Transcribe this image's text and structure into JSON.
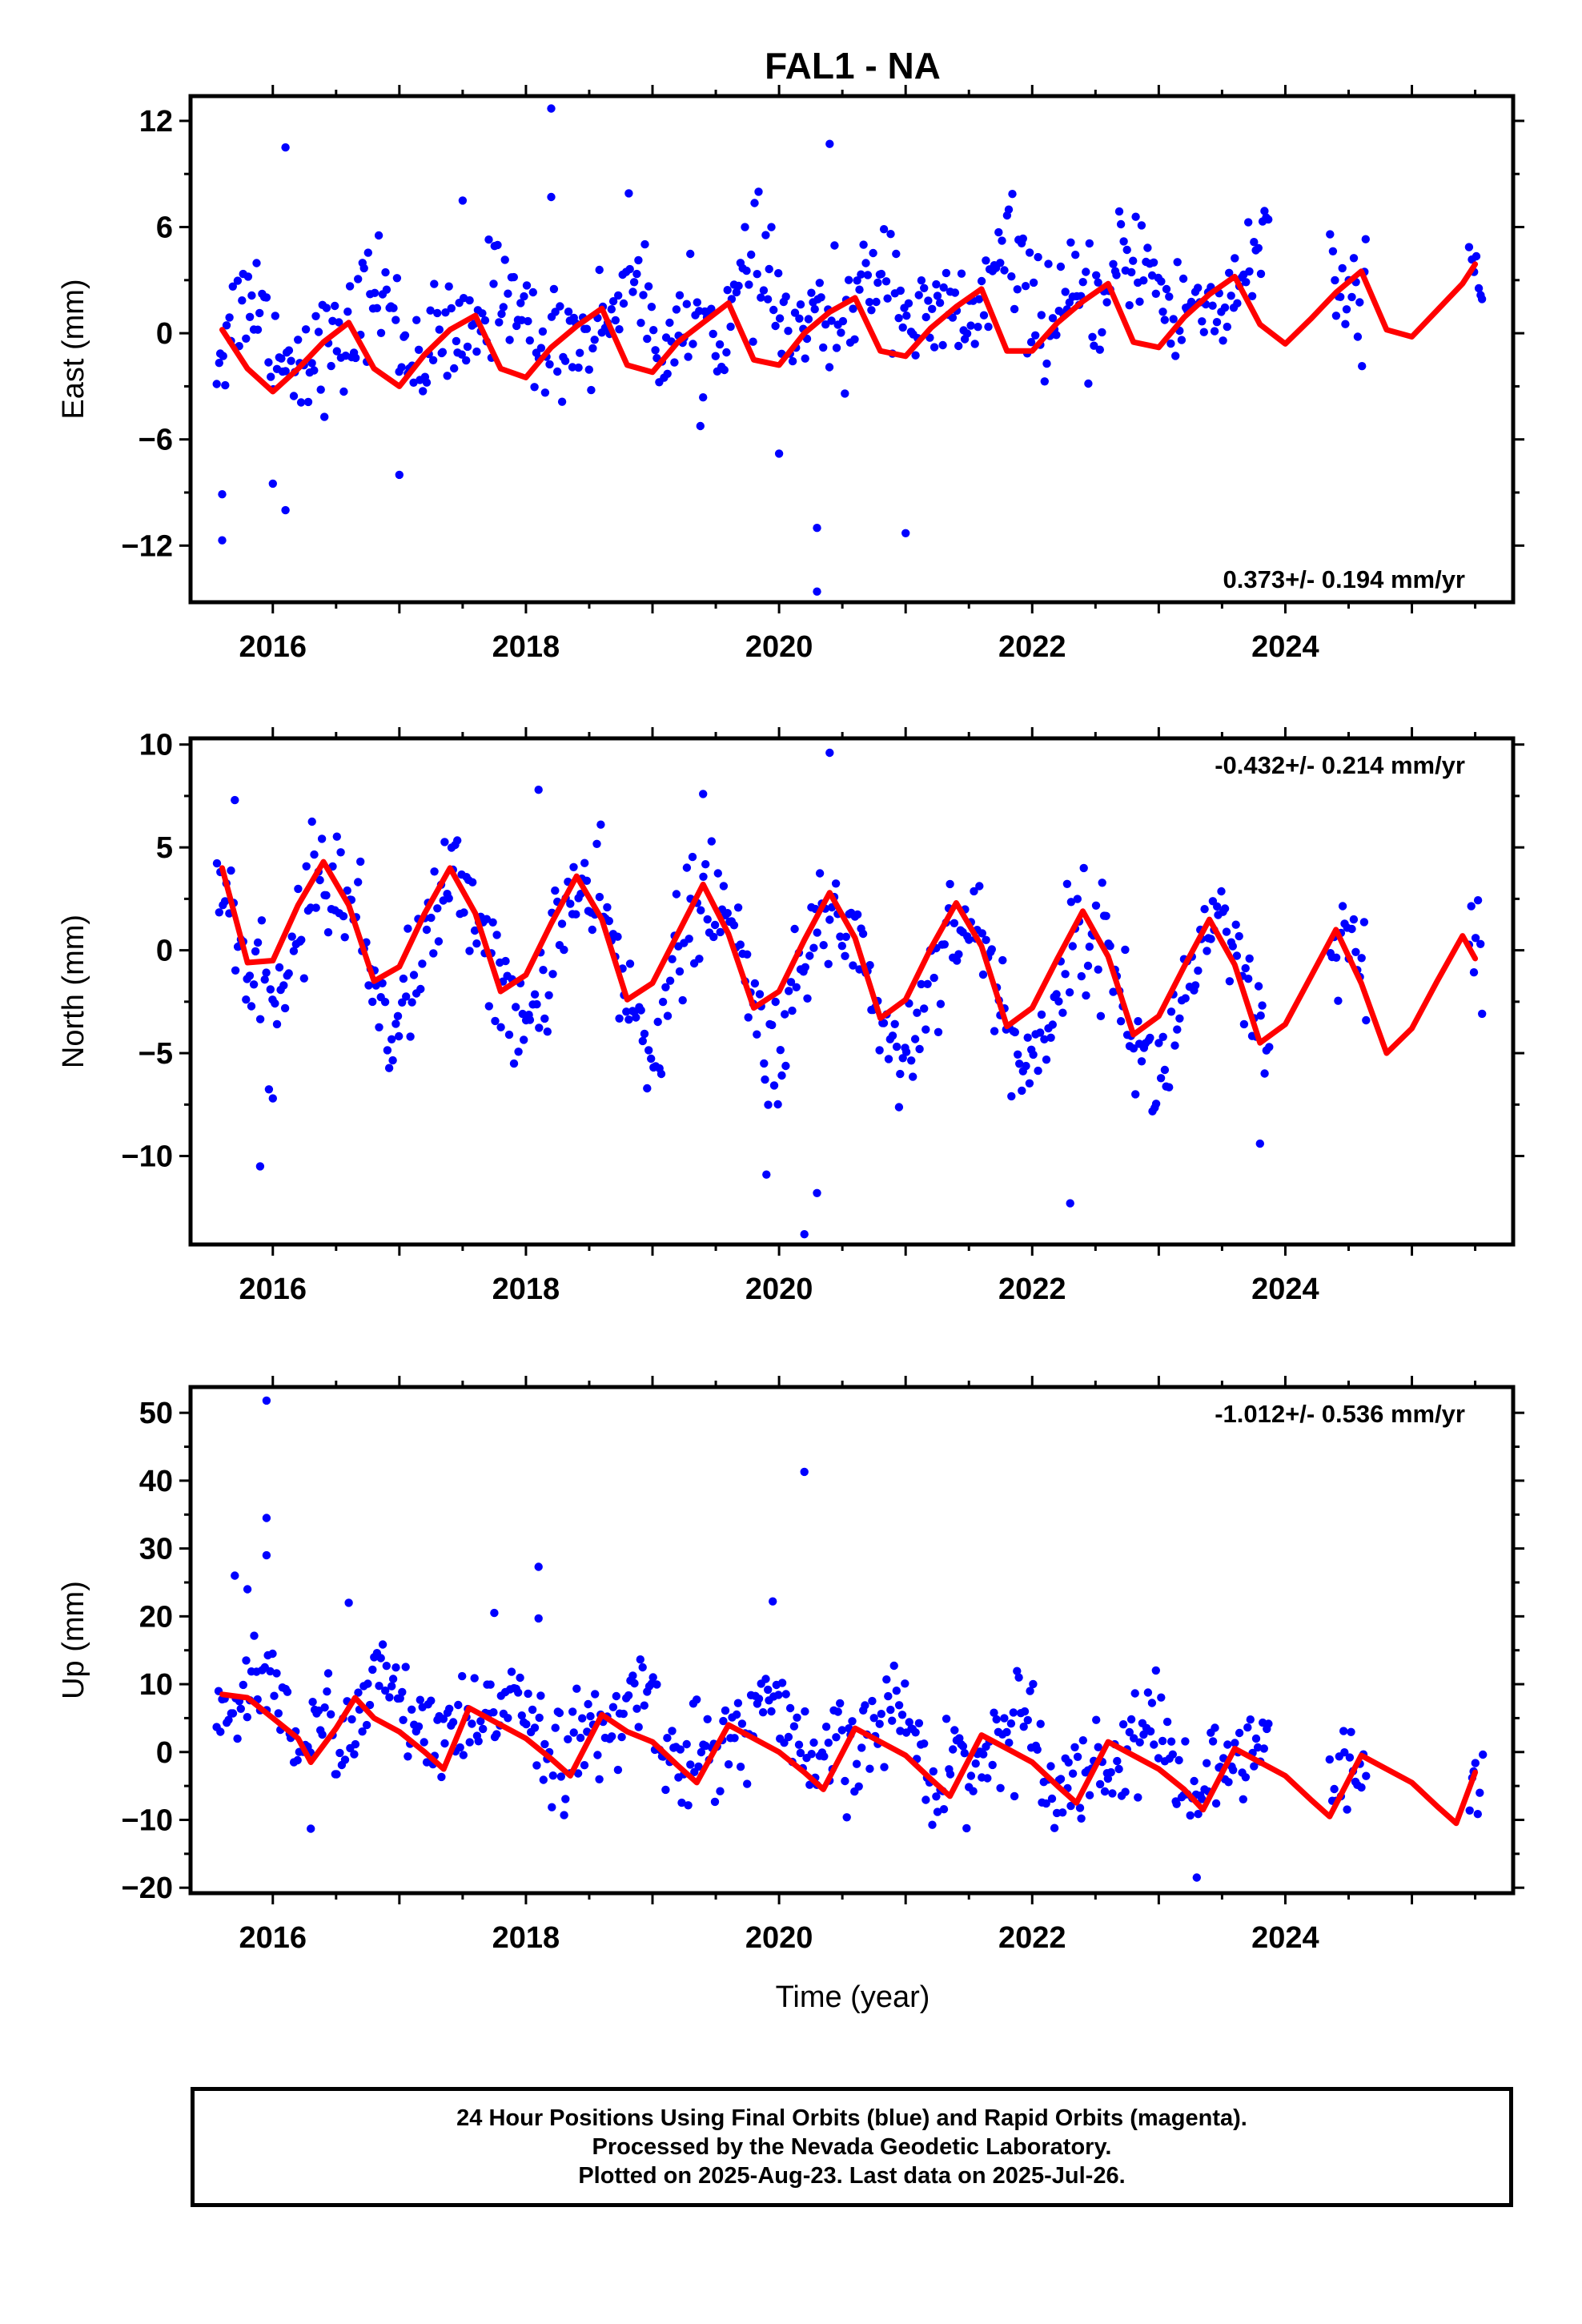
{
  "title": "FAL1 - NA",
  "xlabel": "Time (year)",
  "footer": {
    "line1": "24 Hour Positions Using Final Orbits (blue) and Rapid Orbits (magenta).",
    "line2": "Processed by the Nevada Geodetic Laboratory.",
    "line3": "Plotted on 2025-Aug-23. Last data on 2025-Jul-26."
  },
  "colors": {
    "points": "#0000ff",
    "model": "#ff0000",
    "axis": "#000000"
  },
  "chart_data": [
    {
      "type": "scatter",
      "panel": "east",
      "ylabel": "East (mm)",
      "rate_label": "0.373+/- 0.194 mm/yr",
      "rate_position": "bottom-right",
      "xlim": [
        2015.35,
        2025.8
      ],
      "ylim": [
        -15.2,
        13.4
      ],
      "xticks": [
        2016,
        2018,
        2020,
        2022,
        2024
      ],
      "yticks": [
        -12,
        -6,
        0,
        6,
        12
      ],
      "ytick_labels": [
        "−12",
        "−6",
        "0",
        "6",
        "12"
      ],
      "model": {
        "name": "model",
        "x": [
          2015.6,
          2015.8,
          2016.0,
          2016.2,
          2016.4,
          2016.6,
          2016.8,
          2017.0,
          2017.2,
          2017.4,
          2017.6,
          2017.8,
          2018.0,
          2018.2,
          2018.4,
          2018.6,
          2018.8,
          2019.0,
          2019.2,
          2019.4,
          2019.6,
          2019.8,
          2020.0,
          2020.2,
          2020.4,
          2020.6,
          2020.8,
          2021.0,
          2021.2,
          2021.4,
          2021.6,
          2021.8,
          2022.0,
          2022.2,
          2022.4,
          2022.6,
          2022.8,
          2023.0,
          2023.2,
          2023.4,
          2023.6,
          2023.8,
          2024.0,
          2024.2,
          2024.4,
          2024.6,
          2024.8,
          2025.0,
          2025.2,
          2025.4,
          2025.5
        ],
        "y": [
          0.2,
          -2.0,
          -3.3,
          -2.0,
          -0.5,
          0.6,
          -2.0,
          -3.0,
          -1.2,
          0.2,
          1.0,
          -2.0,
          -2.5,
          -0.8,
          0.4,
          1.4,
          -1.8,
          -2.2,
          -0.5,
          0.6,
          1.7,
          -1.5,
          -1.8,
          0.0,
          1.2,
          2.0,
          -1.0,
          -1.3,
          0.3,
          1.5,
          2.5,
          -1.0,
          -1.0,
          0.6,
          1.8,
          2.8,
          -0.5,
          -0.8,
          0.9,
          2.2,
          3.2,
          0.5,
          -0.6,
          0.8,
          2.3,
          3.5,
          0.2,
          -0.2,
          1.3,
          2.8,
          3.9
        ]
      },
      "scatter_params": {
        "segments": [
          [
            2015.55,
            2023.88
          ],
          [
            2024.35,
            2024.65
          ],
          [
            2025.45,
            2025.57
          ]
        ],
        "trend": 0.373,
        "offset": -0.4,
        "annual_amp": 1.6,
        "annual_phase": 0.55,
        "semi_amp": 0.9,
        "semi_phase": 0.2,
        "noise": 1.6,
        "density": 6
      },
      "outliers": [
        {
          "x": 2016.1,
          "y": 10.5
        },
        {
          "x": 2018.2,
          "y": 12.7
        },
        {
          "x": 2020.4,
          "y": 10.7
        },
        {
          "x": 2020.3,
          "y": -11.0
        },
        {
          "x": 2020.3,
          "y": -14.6
        },
        {
          "x": 2015.6,
          "y": -11.7
        },
        {
          "x": 2021.0,
          "y": -11.3
        },
        {
          "x": 2016.1,
          "y": -10.0
        },
        {
          "x": 2017.0,
          "y": -8.0
        },
        {
          "x": 2017.5,
          "y": 7.5
        },
        {
          "x": 2018.2,
          "y": 7.7
        },
        {
          "x": 2020.0,
          "y": -6.8
        },
        {
          "x": 2015.6,
          "y": -9.1
        },
        {
          "x": 2016.0,
          "y": -8.5
        }
      ]
    },
    {
      "type": "scatter",
      "panel": "north",
      "ylabel": "North (mm)",
      "rate_label": "-0.432+/- 0.214 mm/yr",
      "rate_position": "top-right",
      "xlim": [
        2015.35,
        2025.8
      ],
      "ylim": [
        -14.3,
        10.3
      ],
      "xticks": [
        2016,
        2018,
        2020,
        2022,
        2024
      ],
      "yticks": [
        -10,
        -5,
        0,
        5,
        10
      ],
      "ytick_labels": [
        "−10",
        "−5",
        "0",
        "5",
        "10"
      ],
      "model": {
        "name": "model",
        "x": [
          2015.6,
          2015.8,
          2016.0,
          2016.2,
          2016.4,
          2016.6,
          2016.8,
          2017.0,
          2017.2,
          2017.4,
          2017.6,
          2017.8,
          2018.0,
          2018.2,
          2018.4,
          2018.6,
          2018.8,
          2019.0,
          2019.2,
          2019.4,
          2019.6,
          2019.8,
          2020.0,
          2020.2,
          2020.4,
          2020.6,
          2020.8,
          2021.0,
          2021.2,
          2021.4,
          2021.6,
          2021.8,
          2022.0,
          2022.2,
          2022.4,
          2022.6,
          2022.8,
          2023.0,
          2023.2,
          2023.4,
          2023.6,
          2023.8,
          2024.0,
          2024.2,
          2024.4,
          2024.6,
          2024.8,
          2025.0,
          2025.2,
          2025.4,
          2025.5
        ],
        "y": [
          4.0,
          -0.6,
          -0.5,
          2.2,
          4.3,
          2.2,
          -1.5,
          -0.8,
          1.8,
          4.0,
          1.8,
          -2.0,
          -1.2,
          1.3,
          3.6,
          1.5,
          -2.4,
          -1.6,
          0.8,
          3.2,
          0.8,
          -2.8,
          -2.0,
          0.5,
          2.8,
          0.6,
          -3.3,
          -2.4,
          0.1,
          2.3,
          0.2,
          -3.7,
          -2.8,
          -0.4,
          1.9,
          -0.3,
          -4.1,
          -3.2,
          -0.8,
          1.5,
          -0.7,
          -4.5,
          -3.6,
          -1.3,
          1.0,
          -1.6,
          -5.0,
          -3.8,
          -1.5,
          0.7,
          -0.4
        ]
      },
      "scatter_params": {
        "segments": [
          [
            2015.55,
            2023.88
          ],
          [
            2024.35,
            2024.65
          ],
          [
            2025.45,
            2025.57
          ]
        ],
        "trend": -0.432,
        "offset": 0.9,
        "annual_amp": 3.4,
        "annual_phase": 0.2,
        "semi_amp": 0.4,
        "semi_phase": 0.1,
        "noise": 1.4,
        "density": 6
      },
      "outliers": [
        {
          "x": 2020.4,
          "y": 9.6
        },
        {
          "x": 2019.9,
          "y": -10.9
        },
        {
          "x": 2020.3,
          "y": -11.8
        },
        {
          "x": 2020.2,
          "y": -13.8
        },
        {
          "x": 2022.3,
          "y": -12.3
        },
        {
          "x": 2015.9,
          "y": -10.5
        },
        {
          "x": 2016.0,
          "y": -7.2
        },
        {
          "x": 2023.8,
          "y": -9.4
        },
        {
          "x": 2015.7,
          "y": 7.3
        },
        {
          "x": 2018.1,
          "y": 7.8
        },
        {
          "x": 2019.4,
          "y": 7.6
        }
      ]
    },
    {
      "type": "scatter",
      "panel": "up",
      "ylabel": "Up (mm)",
      "rate_label": "-1.012+/- 0.536 mm/yr",
      "rate_position": "top-right",
      "xlim": [
        2015.35,
        2025.8
      ],
      "ylim": [
        -20.8,
        53.8
      ],
      "xticks": [
        2016,
        2018,
        2020,
        2022,
        2024
      ],
      "yticks": [
        -20,
        -10,
        0,
        10,
        20,
        30,
        40,
        50
      ],
      "ytick_labels": [
        "−20",
        "−10",
        "0",
        "10",
        "20",
        "30",
        "40",
        "50"
      ],
      "model": {
        "name": "model",
        "x": [
          2015.6,
          2015.8,
          2016.0,
          2016.2,
          2016.3,
          2016.5,
          2016.65,
          2016.8,
          2017.0,
          2017.2,
          2017.35,
          2017.55,
          2017.8,
          2018.0,
          2018.2,
          2018.35,
          2018.6,
          2018.8,
          2019.0,
          2019.2,
          2019.35,
          2019.6,
          2019.8,
          2020.0,
          2020.2,
          2020.35,
          2020.6,
          2020.8,
          2021.0,
          2021.2,
          2021.35,
          2021.6,
          2021.8,
          2022.0,
          2022.2,
          2022.35,
          2022.6,
          2022.8,
          2023.0,
          2023.2,
          2023.35,
          2023.6,
          2023.8,
          2024.0,
          2024.2,
          2024.35,
          2024.6,
          2024.8,
          2025.0,
          2025.2,
          2025.35,
          2025.5
        ],
        "y": [
          8.5,
          8.0,
          5.0,
          2.0,
          -1.5,
          3.5,
          8.0,
          5.0,
          3.0,
          0.0,
          -2.5,
          6.5,
          4.0,
          2.0,
          -1.0,
          -3.5,
          5.5,
          3.0,
          1.5,
          -2.0,
          -4.5,
          4.0,
          2.0,
          0.0,
          -3.0,
          -5.5,
          3.5,
          1.5,
          -0.5,
          -4.0,
          -6.5,
          2.5,
          0.5,
          -1.5,
          -5.0,
          -7.5,
          1.5,
          -0.5,
          -2.5,
          -5.5,
          -8.5,
          0.5,
          -1.5,
          -3.5,
          -7.0,
          -9.5,
          -0.5,
          -2.5,
          -4.5,
          -8.0,
          -10.5,
          -3.0
        ]
      },
      "scatter_params": {
        "segments": [
          [
            2015.55,
            2023.88
          ],
          [
            2024.35,
            2024.65
          ],
          [
            2025.45,
            2025.57
          ]
        ],
        "trend": -1.012,
        "offset": 6.5,
        "annual_amp": 4.0,
        "annual_phase": 0.62,
        "semi_amp": 2.0,
        "semi_phase": 0.3,
        "noise": 3.6,
        "density": 6
      },
      "outliers": [
        {
          "x": 2015.95,
          "y": 51.8
        },
        {
          "x": 2015.95,
          "y": 34.5
        },
        {
          "x": 2015.95,
          "y": 29.0
        },
        {
          "x": 2020.2,
          "y": 41.3
        },
        {
          "x": 2019.95,
          "y": 22.2
        },
        {
          "x": 2018.1,
          "y": 27.3
        },
        {
          "x": 2015.7,
          "y": 26.0
        },
        {
          "x": 2016.6,
          "y": 22.0
        },
        {
          "x": 2017.75,
          "y": 20.5
        },
        {
          "x": 2018.1,
          "y": 19.7
        },
        {
          "x": 2023.3,
          "y": -18.5
        },
        {
          "x": 2016.3,
          "y": -11.3
        },
        {
          "x": 2015.8,
          "y": 24.0
        }
      ]
    }
  ]
}
